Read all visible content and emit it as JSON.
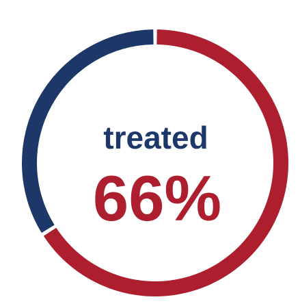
{
  "chart_data": {
    "type": "pie",
    "style": "donut",
    "slices": [
      {
        "label": "treated",
        "value": 66,
        "color": "#ad1f2e"
      },
      {
        "label": "",
        "value": 34,
        "color": "#1c3768"
      }
    ],
    "center": {
      "label": "treated",
      "value_text": "66%",
      "label_color": "#1c3768",
      "value_color": "#ad1f2e"
    }
  }
}
